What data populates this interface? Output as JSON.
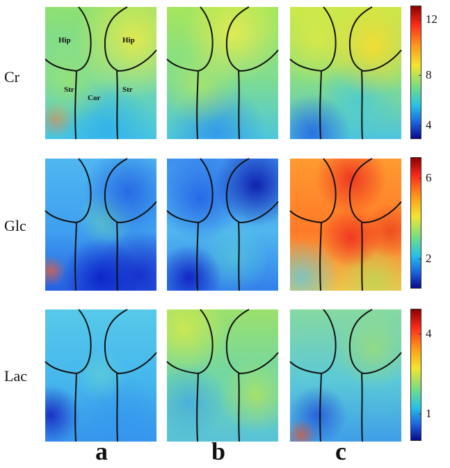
{
  "rows": [
    {
      "label": "Cr",
      "ticks": [
        "12",
        "8",
        "4"
      ]
    },
    {
      "label": "Glc",
      "ticks": [
        "6",
        "2"
      ]
    },
    {
      "label": "Lac",
      "ticks": [
        "4",
        "1"
      ]
    }
  ],
  "columns": [
    "a",
    "b",
    "c"
  ],
  "regions": {
    "hip_left": "Hip",
    "hip_right": "Hip",
    "str_left": "Str",
    "cor": "Cor",
    "str_right": "Str"
  },
  "colors": {
    "outline": "#111111"
  }
}
